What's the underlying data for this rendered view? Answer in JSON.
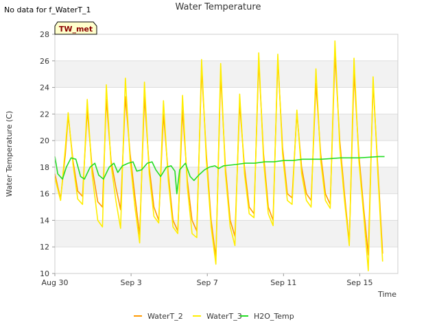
{
  "header": {
    "no_data_note": "No data for f_WaterT_1",
    "badge_label": "TW_met"
  },
  "chart_data": {
    "type": "line",
    "title": "Water Temperature",
    "xlabel": "Time",
    "ylabel": "Water Temperature (C)",
    "x_unit": "days since Aug 30",
    "xlim": [
      0,
      18
    ],
    "ylim": [
      10,
      28
    ],
    "y_ticks": [
      10,
      12,
      14,
      16,
      18,
      20,
      22,
      24,
      26,
      28
    ],
    "x_ticks": [
      {
        "value": 0,
        "label": "Aug 30"
      },
      {
        "value": 4,
        "label": "Sep 3"
      },
      {
        "value": 8,
        "label": "Sep 7"
      },
      {
        "value": 12,
        "label": "Sep 11"
      },
      {
        "value": 16,
        "label": "Sep 15"
      }
    ],
    "grid": true,
    "legend_position": "bottom",
    "series": [
      {
        "name": "WaterT_2",
        "color": "#ff9900",
        "x": [
          0.0,
          0.3,
          0.55,
          0.7,
          0.95,
          1.2,
          1.45,
          1.7,
          1.95,
          2.25,
          2.5,
          2.7,
          2.95,
          3.2,
          3.45,
          3.7,
          3.95,
          4.2,
          4.45,
          4.7,
          4.95,
          5.2,
          5.45,
          5.7,
          5.95,
          6.2,
          6.45,
          6.7,
          6.95,
          7.2,
          7.45,
          7.7,
          7.95,
          8.2,
          8.45,
          8.7,
          8.95,
          9.2,
          9.45,
          9.7,
          9.95,
          10.2,
          10.45,
          10.7,
          10.95,
          11.2,
          11.45,
          11.7,
          11.95,
          12.2,
          12.45,
          12.7,
          12.95,
          13.2,
          13.45,
          13.7,
          13.95,
          14.2,
          14.45,
          14.7,
          14.95,
          15.2,
          15.45,
          15.7,
          15.95,
          16.2,
          16.45,
          16.7,
          16.95,
          17.2
        ],
        "y": [
          17.5,
          15.6,
          19.0,
          21.9,
          18.5,
          16.2,
          15.8,
          22.3,
          18.0,
          15.4,
          15.0,
          23.1,
          18.5,
          16.5,
          14.8,
          23.3,
          19.0,
          15.8,
          12.9,
          23.3,
          18.0,
          15.0,
          14.0,
          22.0,
          17.5,
          14.0,
          13.2,
          22.3,
          17.0,
          14.0,
          13.2,
          25.4,
          19.0,
          14.0,
          11.2,
          25.0,
          18.0,
          14.0,
          12.8,
          22.8,
          18.0,
          15.0,
          14.5,
          26.0,
          19.0,
          15.0,
          14.0,
          26.1,
          19.5,
          16.0,
          15.7,
          22.1,
          18.0,
          16.0,
          15.5,
          24.3,
          19.0,
          16.0,
          15.2,
          26.5,
          20.0,
          16.0,
          12.3,
          25.1,
          19.0,
          15.0,
          11.4,
          24.3,
          18.0,
          11.5
        ]
      },
      {
        "name": "WaterT_3",
        "color": "#ffee00",
        "x": [
          0.0,
          0.3,
          0.55,
          0.7,
          0.95,
          1.2,
          1.45,
          1.7,
          1.95,
          2.25,
          2.5,
          2.7,
          2.95,
          3.2,
          3.45,
          3.7,
          3.95,
          4.2,
          4.45,
          4.7,
          4.95,
          5.2,
          5.45,
          5.7,
          5.95,
          6.2,
          6.45,
          6.7,
          6.95,
          7.2,
          7.45,
          7.7,
          7.95,
          8.2,
          8.45,
          8.7,
          8.95,
          9.2,
          9.45,
          9.7,
          9.95,
          10.2,
          10.45,
          10.7,
          10.95,
          11.2,
          11.45,
          11.7,
          11.95,
          12.2,
          12.45,
          12.7,
          12.95,
          13.2,
          13.45,
          13.7,
          13.95,
          14.2,
          14.45,
          14.7,
          14.95,
          15.2,
          15.45,
          15.7,
          15.95,
          16.2,
          16.45,
          16.7,
          16.95,
          17.2
        ],
        "y": [
          17.2,
          15.5,
          19.5,
          22.1,
          18.2,
          15.6,
          15.2,
          23.1,
          17.5,
          14.0,
          13.5,
          24.2,
          18.2,
          15.5,
          13.4,
          24.7,
          18.5,
          15.0,
          12.3,
          24.4,
          17.5,
          14.3,
          13.8,
          23.0,
          17.0,
          13.5,
          13.0,
          23.4,
          16.5,
          13.0,
          12.7,
          26.1,
          18.5,
          13.5,
          10.7,
          25.8,
          17.5,
          13.5,
          12.1,
          23.5,
          17.5,
          14.5,
          14.2,
          26.6,
          18.5,
          14.5,
          13.6,
          26.5,
          19.0,
          15.5,
          15.2,
          22.3,
          17.5,
          15.5,
          15.0,
          25.4,
          18.5,
          15.5,
          14.9,
          27.5,
          19.5,
          15.5,
          12.1,
          26.2,
          18.5,
          14.5,
          10.2,
          24.8,
          17.5,
          10.9
        ]
      },
      {
        "name": "H2O_Temp",
        "color": "#22dd22",
        "x": [
          0.0,
          0.15,
          0.4,
          0.6,
          0.85,
          1.1,
          1.35,
          1.55,
          1.85,
          2.1,
          2.3,
          2.55,
          2.85,
          3.1,
          3.3,
          3.55,
          3.85,
          4.1,
          4.3,
          4.55,
          4.85,
          5.1,
          5.3,
          5.55,
          5.85,
          6.1,
          6.3,
          6.4,
          6.55,
          6.85,
          7.1,
          7.3,
          7.55,
          7.85,
          8.1,
          8.4,
          8.6,
          8.85,
          9.5,
          10.0,
          10.5,
          11.0,
          11.5,
          12.0,
          12.5,
          13.0,
          14.0,
          15.0,
          16.0,
          17.0,
          17.3
        ],
        "y": [
          18.8,
          17.5,
          17.1,
          18.0,
          18.7,
          18.6,
          17.3,
          17.1,
          18.0,
          18.3,
          17.4,
          17.1,
          18.0,
          18.3,
          17.6,
          18.1,
          18.3,
          18.4,
          17.7,
          17.8,
          18.3,
          18.4,
          17.8,
          17.3,
          18.0,
          18.1,
          17.7,
          16.0,
          17.8,
          18.3,
          17.3,
          17.0,
          17.4,
          17.8,
          18.0,
          18.1,
          17.9,
          18.1,
          18.2,
          18.3,
          18.3,
          18.4,
          18.4,
          18.5,
          18.5,
          18.6,
          18.6,
          18.7,
          18.7,
          18.8,
          18.8
        ]
      }
    ]
  }
}
